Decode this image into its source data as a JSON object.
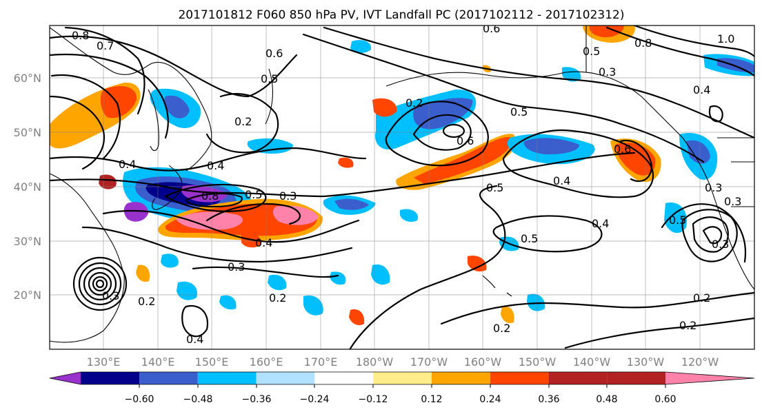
{
  "title": "2017101812 F060 850 hPa PV, IVT Landfall PC (2017102112 - 2017102312)",
  "lat_labels": [
    "60°N",
    "50°N",
    "40°N",
    "30°N",
    "20°N"
  ],
  "lon_labels": [
    "130°E",
    "140°E",
    "150°E",
    "160°E",
    "170°E",
    "180°W",
    "170°W",
    "160°W",
    "150°W",
    "140°W",
    "130°W",
    "120°W"
  ],
  "colorbar": {
    "colors": [
      "#9932cc",
      "#00008b",
      "#3a5fcd",
      "#00bfff",
      "#b0e2ff",
      "#ffffff",
      "#ffec8b",
      "#ffa500",
      "#ff4500",
      "#b22222",
      "#ff82ab"
    ],
    "tick_labels": [
      "−0.60",
      "−0.48",
      "−0.36",
      "−0.24",
      "−0.12",
      "0.12",
      "0.24",
      "0.36",
      "0.48",
      "0.60"
    ]
  },
  "contour_labels": [
    "0.8",
    "0.7",
    "0.6",
    "0.6",
    "0.5",
    "0.3",
    "1.0",
    "0.8",
    "0.4",
    "0.5",
    "0.5",
    "0.6",
    "0.2",
    "0.2",
    "0.4",
    "0.4",
    "0.8",
    "0.5",
    "0.3",
    "0.6",
    "0.5",
    "0.4",
    "0.3",
    "0.4",
    "0.5",
    "0.4",
    "0.3",
    "0.5",
    "0.2",
    "0.2",
    "0.2",
    "0.3",
    "0.2",
    "0.4",
    "0.3",
    "0.3",
    "0.2"
  ]
}
